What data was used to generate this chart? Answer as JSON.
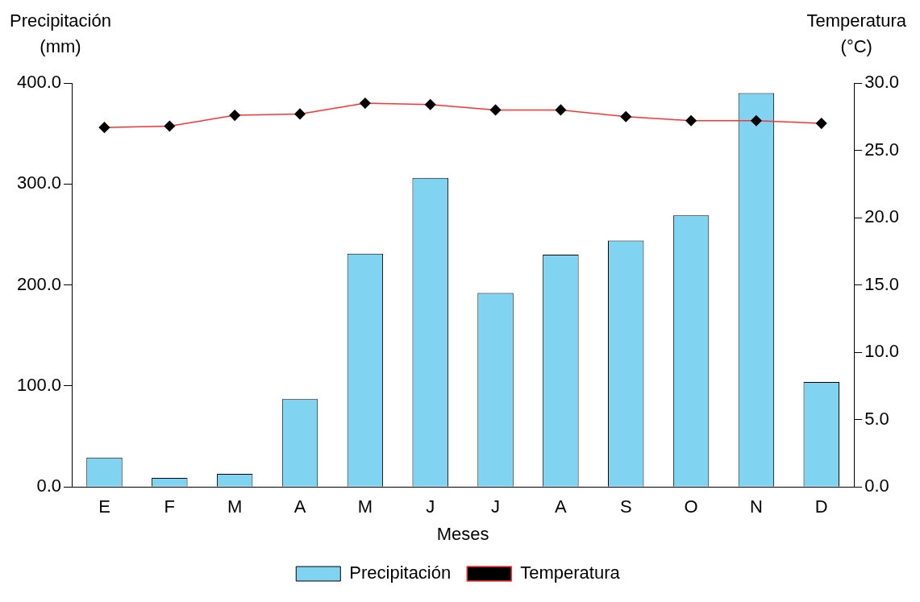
{
  "chart_data": {
    "type": "bar",
    "xlabel": "Meses",
    "ylabel": "Precipitación (mm)",
    "y2label": "Temperatura (°C)",
    "categories": [
      "E",
      "F",
      "M",
      "A",
      "M",
      "J",
      "J",
      "A",
      "S",
      "O",
      "N",
      "D"
    ],
    "series": [
      {
        "name": "Precipitación",
        "color": "#80d4f2",
        "values": [
          29,
          9,
          13,
          87,
          231,
          306,
          192,
          230,
          244,
          269,
          390,
          104
        ]
      },
      {
        "name": "Temperatura",
        "type": "line",
        "axis": "y2",
        "color": "#ff3333",
        "marker": "diamond",
        "values": [
          26.7,
          26.8,
          27.6,
          27.7,
          28.5,
          28.4,
          28.0,
          28.0,
          27.5,
          27.2,
          27.2,
          27.0
        ]
      }
    ],
    "ylim": [
      0,
      400
    ],
    "yticks": [
      {
        "value": 0,
        "label": "0.0"
      },
      {
        "value": 100,
        "label": "100.0"
      },
      {
        "value": 200,
        "label": "200.0"
      },
      {
        "value": 300,
        "label": "300.0"
      },
      {
        "value": 400,
        "label": "400.0"
      }
    ],
    "y2lim": [
      0,
      30
    ],
    "y2ticks": [
      {
        "value": 0,
        "label": "0.0"
      },
      {
        "value": 5,
        "label": "5.0"
      },
      {
        "value": 10,
        "label": "10.0"
      },
      {
        "value": 15,
        "label": "15.0"
      },
      {
        "value": 20,
        "label": "20.0"
      },
      {
        "value": 25,
        "label": "25.0"
      },
      {
        "value": 30,
        "label": "30.0"
      }
    ],
    "grid": false,
    "legend": "bottom"
  }
}
